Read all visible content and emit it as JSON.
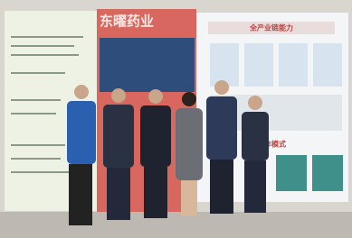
{
  "banner": {
    "brand": "东曜药业",
    "heading": "全产业链能力",
    "section": "合作模式"
  }
}
